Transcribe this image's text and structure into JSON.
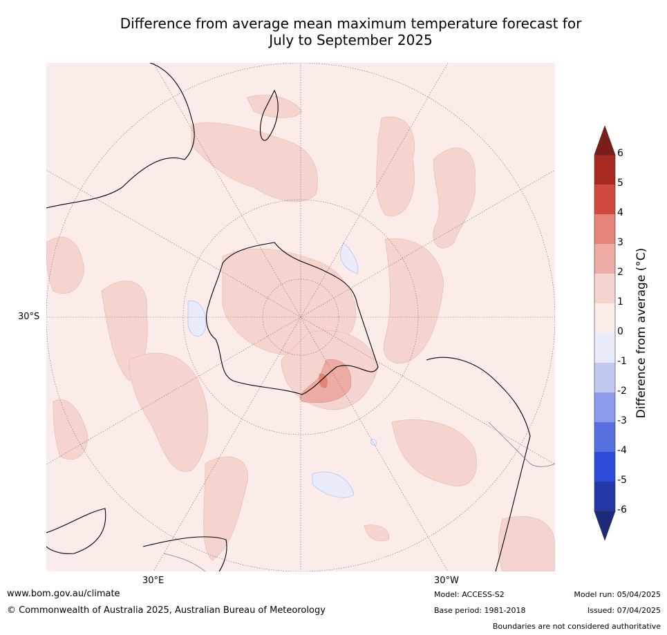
{
  "title_line1": "Difference from average mean maximum temperature forecast for",
  "title_line2": "July to September 2025",
  "graticule_labels": {
    "lat": "30°S",
    "lon_east": "30°E",
    "lon_west": "30°W"
  },
  "colorbar": {
    "label": "Difference from average (°C)",
    "ticks": [
      "6",
      "5",
      "4",
      "3",
      "2",
      "1",
      "0",
      "-1",
      "-2",
      "-3",
      "-4",
      "-5",
      "-6"
    ],
    "colors": {
      "above_6": "#7b1e1a",
      "5_6": "#a62a22",
      "4_5": "#d04a3d",
      "3_4": "#e5857a",
      "2_3": "#ecaca3",
      "1_2": "#f5d4d0",
      "0_1": "#fbecea",
      "m1_0": "#e8ecfa",
      "m2_m1": "#c1c9f1",
      "m3_m2": "#8b9bea",
      "m4_m3": "#5670e0",
      "m5_m4": "#2e4ad8",
      "m6_m5": "#2537a8",
      "below_m6": "#1e2a7a"
    }
  },
  "footer": {
    "url": "www.bom.gov.au/climate",
    "copyright": "© Commonwealth of Australia 2025, Australian Bureau of Meteorology",
    "model": "Model: ACCESS-S2",
    "base_period": "Base period: 1981-2018",
    "model_run": "Model run: 05/04/2025",
    "issued": "Issued: 07/04/2025",
    "disclaimer": "Boundaries are not considered authoritative"
  }
}
